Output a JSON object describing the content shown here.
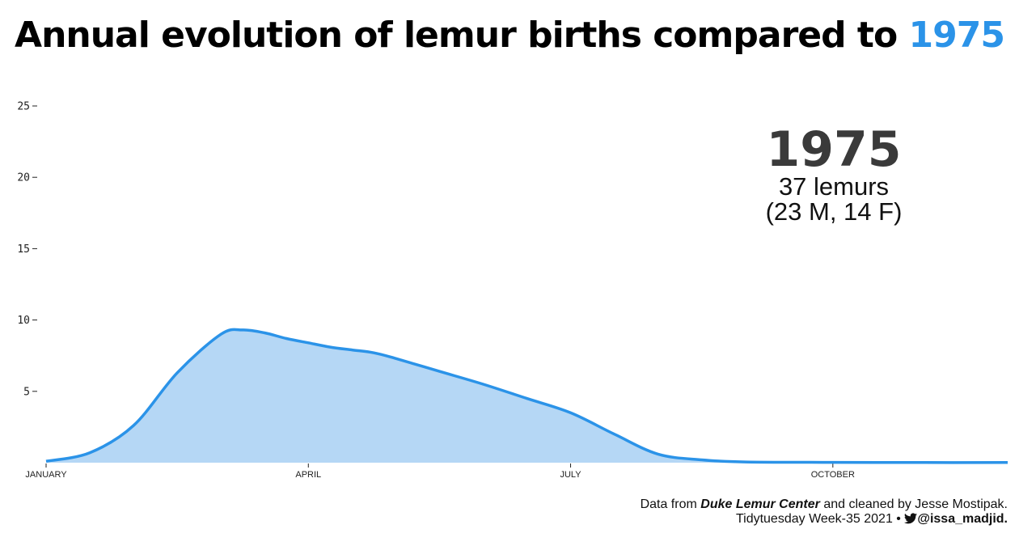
{
  "title": {
    "text": "Annual evolution of lemur births compared to",
    "year": "1975"
  },
  "annotation": {
    "year": "1975",
    "count": "37 lemurs",
    "breakdown": "(23 M, 14 F)"
  },
  "caption": {
    "line1_prefix": "Data from",
    "line1_source": "Duke Lemur Center",
    "line1_suffix": "and cleaned by Jesse Mostipak.",
    "line2_prefix": "Tidytuesday Week-35 2021 •",
    "line2_handle": "@issa_madjid.",
    "icon": "twitter-bird-icon"
  },
  "colors": {
    "accent": "#2b93e8",
    "fill": "#b5d7f5",
    "line": "#2b93e8",
    "year_text": "#3a3a3a"
  },
  "chart_data": {
    "type": "area",
    "title": "Annual evolution of lemur births compared to 1975",
    "xlabel": "",
    "ylabel": "",
    "ylim": [
      0,
      25
    ],
    "yticks": [
      5,
      10,
      15,
      20,
      25
    ],
    "xlim": [
      0,
      11
    ],
    "xticks": [
      {
        "value": 0,
        "label": "JANUARY"
      },
      {
        "value": 3,
        "label": "APRIL"
      },
      {
        "value": 6,
        "label": "JULY"
      },
      {
        "value": 9,
        "label": "OCTOBER"
      }
    ],
    "grid": false,
    "series": [
      {
        "x": [
          0,
          0.5,
          1,
          1.5,
          2,
          2.25,
          2.5,
          2.75,
          3,
          3.25,
          3.5,
          3.75,
          4,
          4.5,
          5,
          5.5,
          6,
          6.5,
          7,
          7.5,
          8,
          9,
          10,
          11
        ],
        "y": [
          0.1,
          0.7,
          2.6,
          6.3,
          9.0,
          9.3,
          9.1,
          8.7,
          8.4,
          8.1,
          7.9,
          7.7,
          7.3,
          6.4,
          5.5,
          4.5,
          3.5,
          2.0,
          0.6,
          0.2,
          0.05,
          0.02,
          0.01,
          0.01
        ]
      }
    ]
  }
}
